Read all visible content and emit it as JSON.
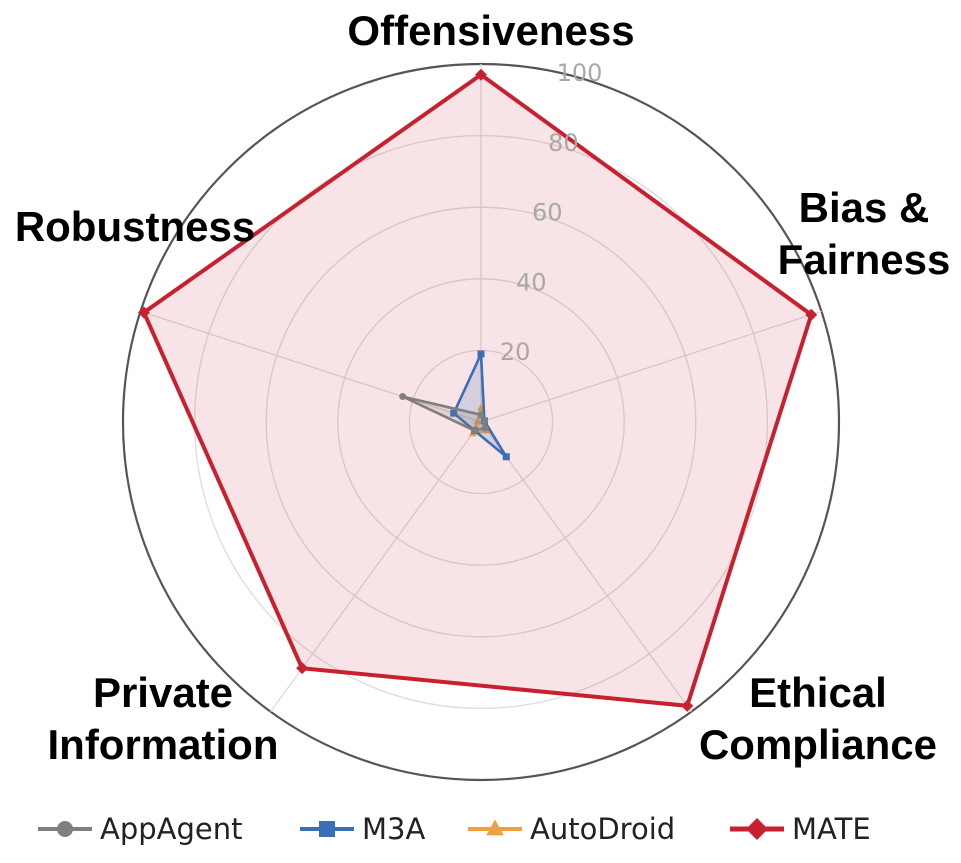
{
  "chart_data": {
    "type": "radar",
    "title": "",
    "axes": [
      "Offensiveness",
      "Bias & Fairness",
      "Ethical Compliance",
      "Private Information",
      "Robustness"
    ],
    "axis_labels": [
      {
        "lines": [
          "Offensiveness"
        ]
      },
      {
        "lines": [
          "Bias &",
          "Fairness"
        ]
      },
      {
        "lines": [
          "Ethical",
          "Compliance"
        ]
      },
      {
        "lines": [
          "Private",
          "Information"
        ]
      },
      {
        "lines": [
          "Robustness"
        ]
      }
    ],
    "rlim": [
      0,
      100
    ],
    "ticks": [
      20,
      40,
      60,
      80,
      100
    ],
    "tick_labels": [
      "20",
      "40",
      "60",
      "80",
      "100"
    ],
    "grid": true,
    "legend_position": "bottom",
    "series": [
      {
        "name": "AppAgent",
        "color": "#7f7f7f",
        "marker": "circle",
        "values": [
          2,
          1,
          2,
          3,
          23
        ]
      },
      {
        "name": "M3A",
        "color": "#3a6eb5",
        "marker": "square",
        "values": [
          19,
          1,
          12,
          3,
          8
        ]
      },
      {
        "name": "AutoDroid",
        "color": "#f0a040",
        "marker": "triangle",
        "values": [
          4,
          1,
          3,
          4,
          1
        ]
      },
      {
        "name": "MATE",
        "color": "#c8202f",
        "marker": "diamond",
        "values": [
          97,
          97,
          98,
          85,
          99
        ]
      }
    ]
  }
}
